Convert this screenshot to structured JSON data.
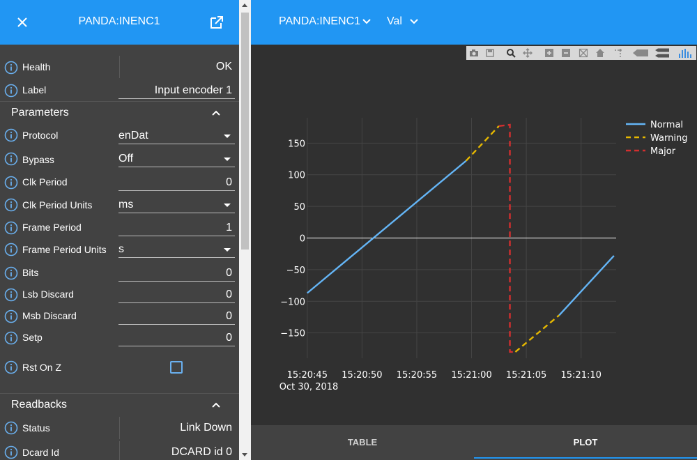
{
  "left_panel": {
    "title": "PANDA:INENC1",
    "health": {
      "label": "Health",
      "value": "OK"
    },
    "label_row": {
      "label": "Label",
      "value": "Input encoder 1"
    },
    "parameters": {
      "title": "Parameters",
      "protocol": {
        "label": "Protocol",
        "value": "enDat"
      },
      "bypass": {
        "label": "Bypass",
        "value": "Off"
      },
      "clk_period": {
        "label": "Clk Period",
        "value": "0"
      },
      "clk_period_units": {
        "label": "Clk Period Units",
        "value": "ms"
      },
      "frame_period": {
        "label": "Frame Period",
        "value": "1"
      },
      "frame_period_units": {
        "label": "Frame Period Units",
        "value": "s"
      },
      "bits": {
        "label": "Bits",
        "value": "0"
      },
      "lsb_discard": {
        "label": "Lsb Discard",
        "value": "0"
      },
      "msb_discard": {
        "label": "Msb Discard",
        "value": "0"
      },
      "setp": {
        "label": "Setp",
        "value": "0"
      },
      "rst_on_z": {
        "label": "Rst On Z",
        "checked": false
      }
    },
    "readbacks": {
      "title": "Readbacks",
      "status": {
        "label": "Status",
        "value": "Link Down"
      },
      "dcard_id": {
        "label": "Dcard Id",
        "value": "DCARD id 0"
      }
    }
  },
  "right_panel": {
    "block_select": "PANDA:INENC1",
    "attr_select": "Val",
    "tabs": [
      "TABLE",
      "PLOT"
    ],
    "active_tab": "PLOT"
  },
  "chart_data": {
    "type": "line",
    "title": "",
    "xlabel": "",
    "ylabel": "",
    "x_ticks": [
      "15:20:45",
      "15:20:50",
      "15:20:55",
      "15:21:00",
      "15:21:05",
      "15:21:10"
    ],
    "x_date_label": "Oct 30, 2018",
    "y_ticks": [
      "150",
      "100",
      "50",
      "0",
      "−50",
      "−100",
      "−150"
    ],
    "ylim": [
      -190,
      190
    ],
    "xlim": [
      "15:20:45",
      "15:21:13"
    ],
    "legend": "top-right",
    "grid": true,
    "colors": {
      "Normal": "#64b5f6",
      "Warning": "#e6b800",
      "Major": "#d32f2f"
    },
    "series": [
      {
        "name": "Normal",
        "style": "solid",
        "x": [
          "15:20:45",
          "15:20:59.5"
        ],
        "y": [
          -87,
          122
        ]
      },
      {
        "name": "Warning",
        "style": "dashed",
        "x": [
          "15:20:59.5",
          "15:21:02.5"
        ],
        "y": [
          122,
          177
        ]
      },
      {
        "name": "Major",
        "style": "dashed",
        "x": [
          "15:21:02.5",
          "15:21:03.5",
          "15:21:03.5",
          "15:21:04"
        ],
        "y": [
          177,
          179,
          -180,
          -180
        ]
      },
      {
        "name": "Warning",
        "style": "dashed",
        "x": [
          "15:21:04",
          "15:21:08"
        ],
        "y": [
          -180,
          -122
        ]
      },
      {
        "name": "Normal",
        "style": "solid",
        "x": [
          "15:21:08",
          "15:21:13"
        ],
        "y": [
          -122,
          -28
        ]
      }
    ]
  }
}
